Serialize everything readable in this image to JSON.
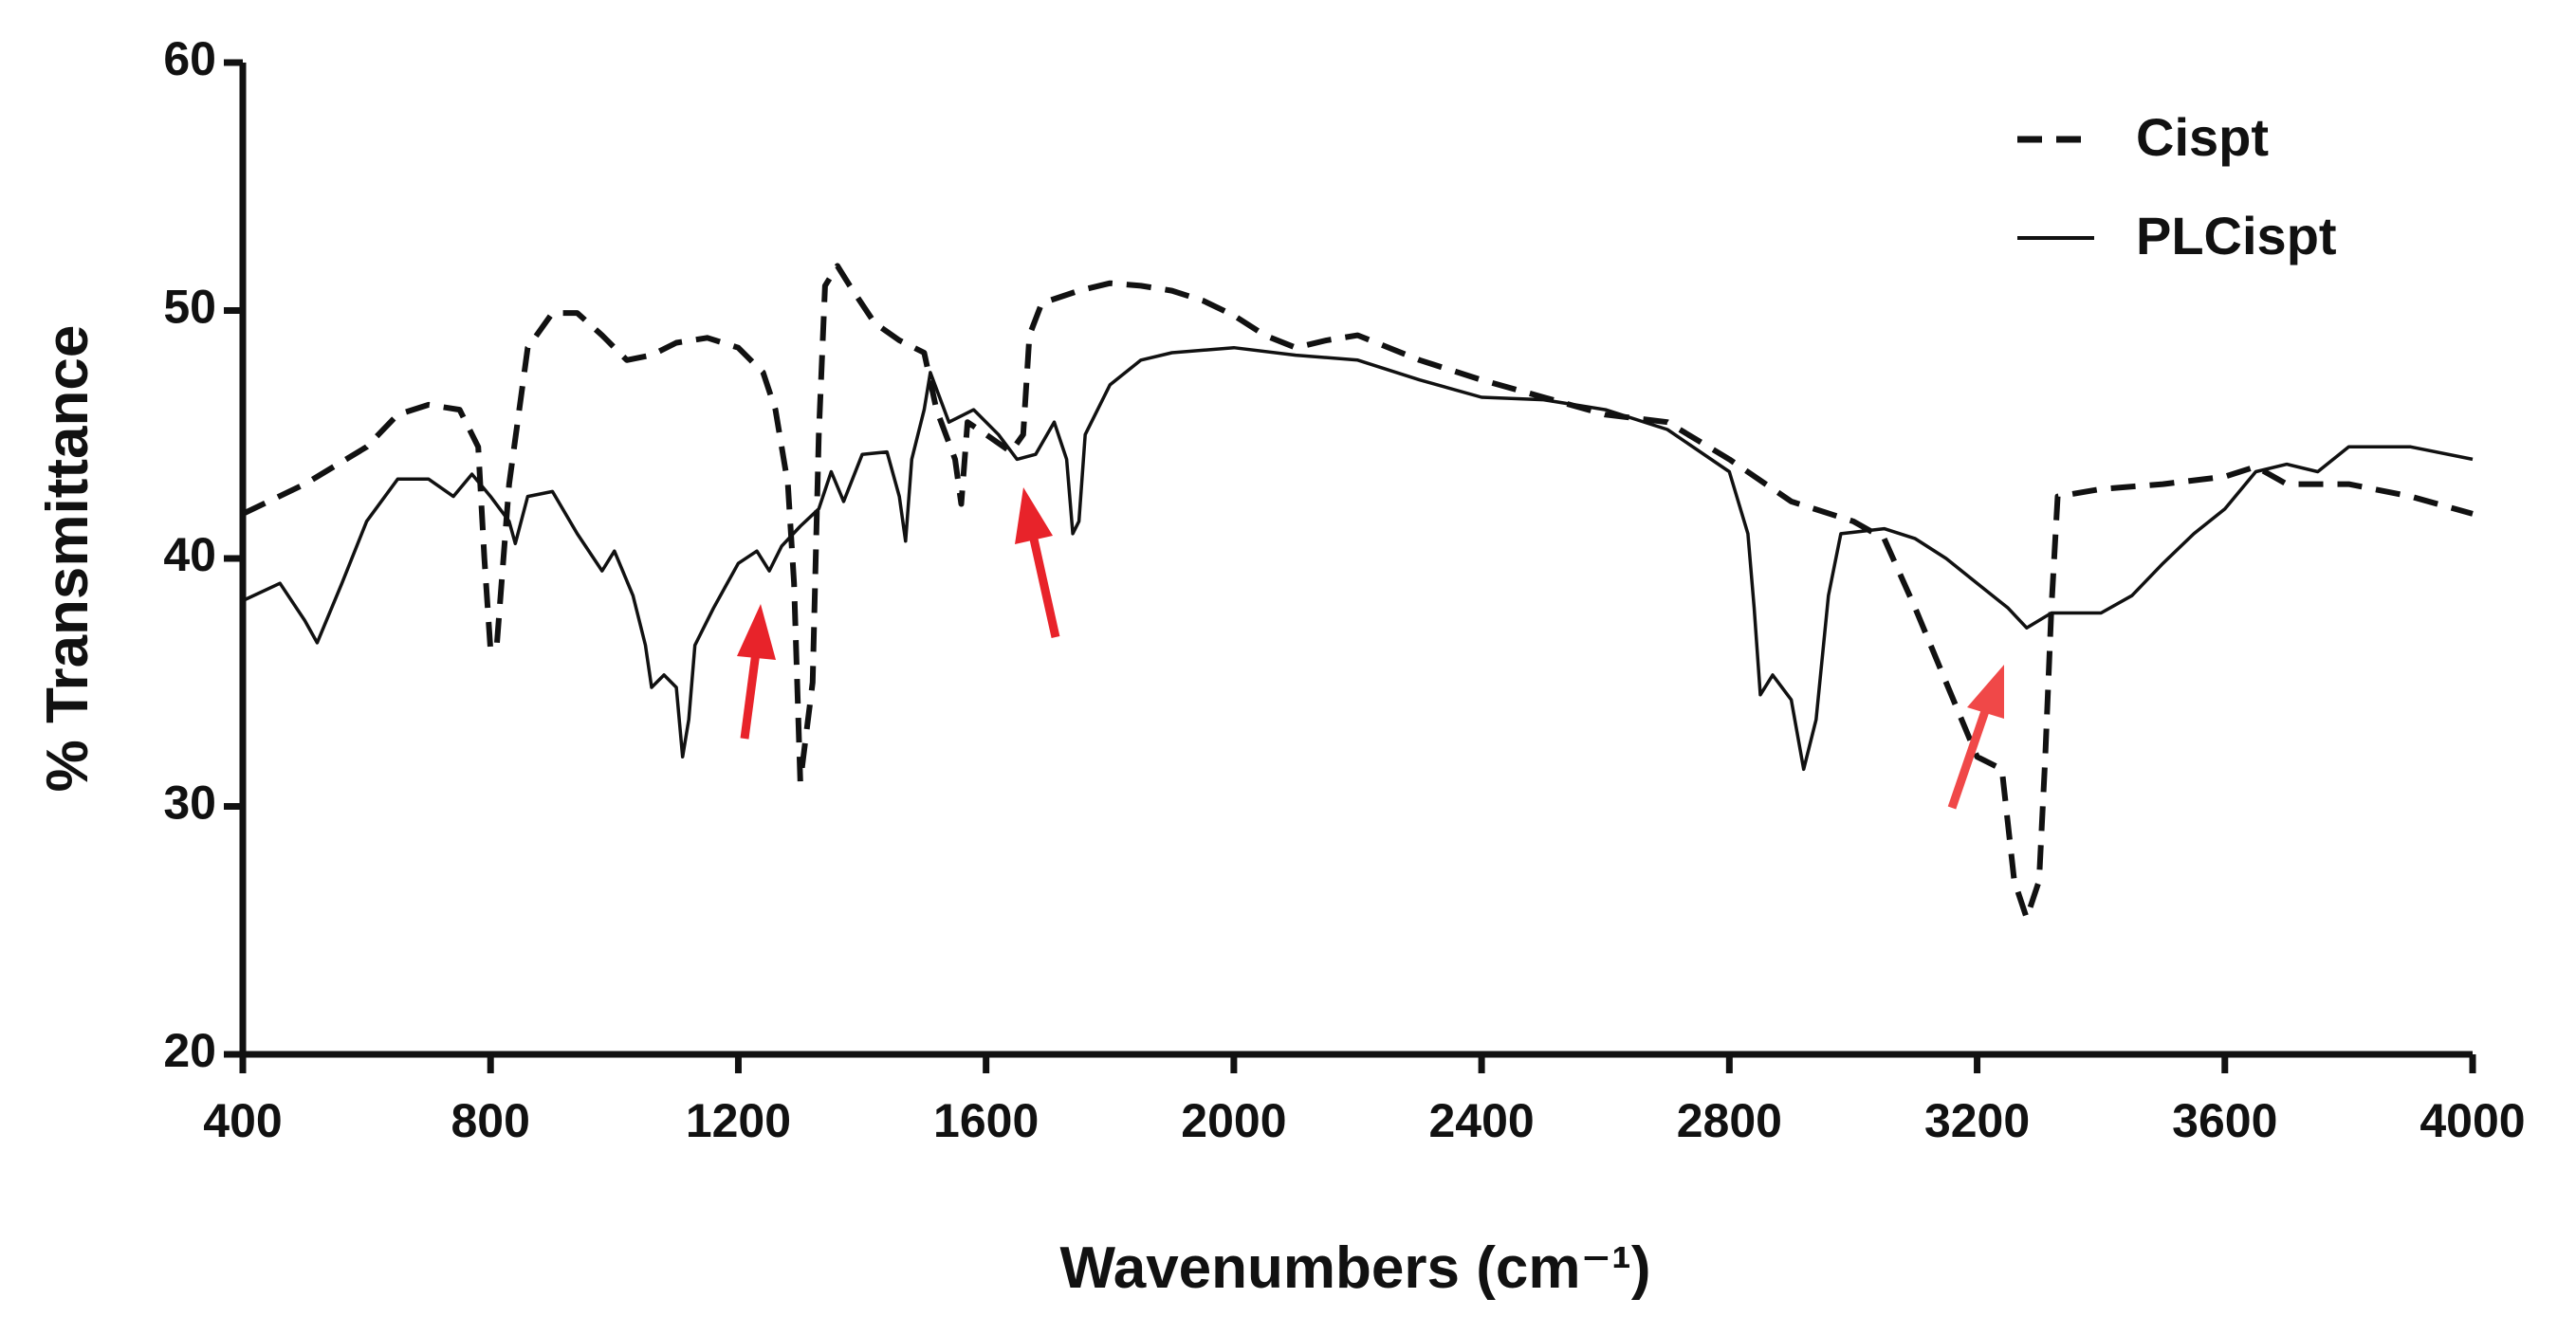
{
  "chart_data": {
    "type": "line",
    "x_label": "Wavenumbers (cm⁻¹)",
    "y_label": "% Transmittance",
    "xlim": [
      400,
      4000
    ],
    "xticks": [
      400,
      800,
      1200,
      1600,
      2000,
      2400,
      2800,
      3200,
      3600,
      4000
    ],
    "ylim": [
      20,
      60
    ],
    "yticks": [
      20,
      30,
      40,
      50,
      60
    ],
    "grid": false,
    "legend": "upper right",
    "series": [
      {
        "name": "Cispt",
        "color": "#111111",
        "style": "dashed",
        "x": [
          400,
          500,
          600,
          650,
          700,
          750,
          780,
          790,
          800,
          810,
          830,
          860,
          900,
          940,
          980,
          1020,
          1060,
          1100,
          1150,
          1200,
          1240,
          1260,
          1280,
          1290,
          1300,
          1310,
          1320,
          1330,
          1340,
          1360,
          1380,
          1420,
          1460,
          1500,
          1520,
          1550,
          1560,
          1570,
          1600,
          1640,
          1660,
          1670,
          1690,
          1750,
          1800,
          1850,
          1900,
          1950,
          2000,
          2050,
          2100,
          2150,
          2200,
          2300,
          2400,
          2500,
          2600,
          2700,
          2800,
          2900,
          3000,
          3050,
          3100,
          3150,
          3200,
          3240,
          3260,
          3280,
          3300,
          3310,
          3320,
          3330,
          3400,
          3500,
          3600,
          3650,
          3700,
          3800,
          3900,
          4000
        ],
        "values": [
          41.8,
          43,
          44.5,
          45.8,
          46.2,
          46,
          44.5,
          40,
          36.3,
          36.5,
          43,
          48.5,
          49.9,
          49.9,
          49,
          48,
          48.2,
          48.7,
          48.9,
          48.5,
          47.5,
          46,
          43,
          39,
          31,
          33,
          35,
          45,
          51,
          51.8,
          51,
          49.5,
          48.8,
          48.3,
          46,
          44,
          42.2,
          45.5,
          45,
          44.3,
          45,
          49,
          50.3,
          50.8,
          51.1,
          51,
          50.8,
          50.4,
          49.8,
          49,
          48.5,
          48.8,
          49,
          48,
          47.2,
          46.5,
          45.8,
          45.5,
          44,
          42.3,
          41.5,
          40.8,
          38,
          35,
          32,
          31.5,
          27,
          25.5,
          27,
          32,
          38,
          42.5,
          42.8,
          43,
          43.3,
          43.7,
          43,
          43,
          42.5,
          41.8
        ]
      },
      {
        "name": "PLCispt",
        "color": "#111111",
        "style": "solid",
        "x": [
          400,
          460,
          500,
          520,
          560,
          600,
          650,
          700,
          740,
          770,
          800,
          830,
          840,
          860,
          900,
          940,
          980,
          1000,
          1030,
          1050,
          1060,
          1080,
          1100,
          1110,
          1120,
          1130,
          1160,
          1200,
          1230,
          1250,
          1270,
          1300,
          1330,
          1350,
          1370,
          1400,
          1440,
          1460,
          1470,
          1480,
          1500,
          1510,
          1540,
          1580,
          1620,
          1650,
          1680,
          1710,
          1730,
          1740,
          1750,
          1760,
          1800,
          1850,
          1900,
          2000,
          2100,
          2200,
          2300,
          2400,
          2500,
          2600,
          2700,
          2800,
          2830,
          2840,
          2850,
          2870,
          2900,
          2920,
          2940,
          2960,
          2980,
          3050,
          3100,
          3150,
          3200,
          3250,
          3280,
          3320,
          3400,
          3450,
          3500,
          3550,
          3600,
          3650,
          3700,
          3750,
          3800,
          3900,
          4000
        ],
        "values": [
          38.3,
          39,
          37.5,
          36.6,
          39,
          41.5,
          43.2,
          43.2,
          42.5,
          43.4,
          42.5,
          41.5,
          40.6,
          42.5,
          42.7,
          41,
          39.5,
          40.3,
          38.5,
          36.5,
          34.8,
          35.3,
          34.8,
          32,
          33.5,
          36.5,
          38,
          39.8,
          40.3,
          39.5,
          40.5,
          41.3,
          42,
          43.5,
          42.3,
          44.2,
          44.3,
          42.5,
          40.7,
          44,
          46,
          47.5,
          45.5,
          46,
          45,
          44,
          44.2,
          45.5,
          44,
          41,
          41.5,
          45,
          47,
          48,
          48.3,
          48.5,
          48.2,
          48,
          47.2,
          46.5,
          46.4,
          46,
          45.2,
          43.5,
          41,
          38,
          34.5,
          35.3,
          34.3,
          31.5,
          33.5,
          38.5,
          41,
          41.2,
          40.8,
          40,
          39,
          38,
          37.2,
          37.8,
          37.8,
          38.5,
          39.8,
          41,
          42,
          43.5,
          43.8,
          43.5,
          44.5,
          44.5,
          44
        ]
      }
    ]
  }
}
